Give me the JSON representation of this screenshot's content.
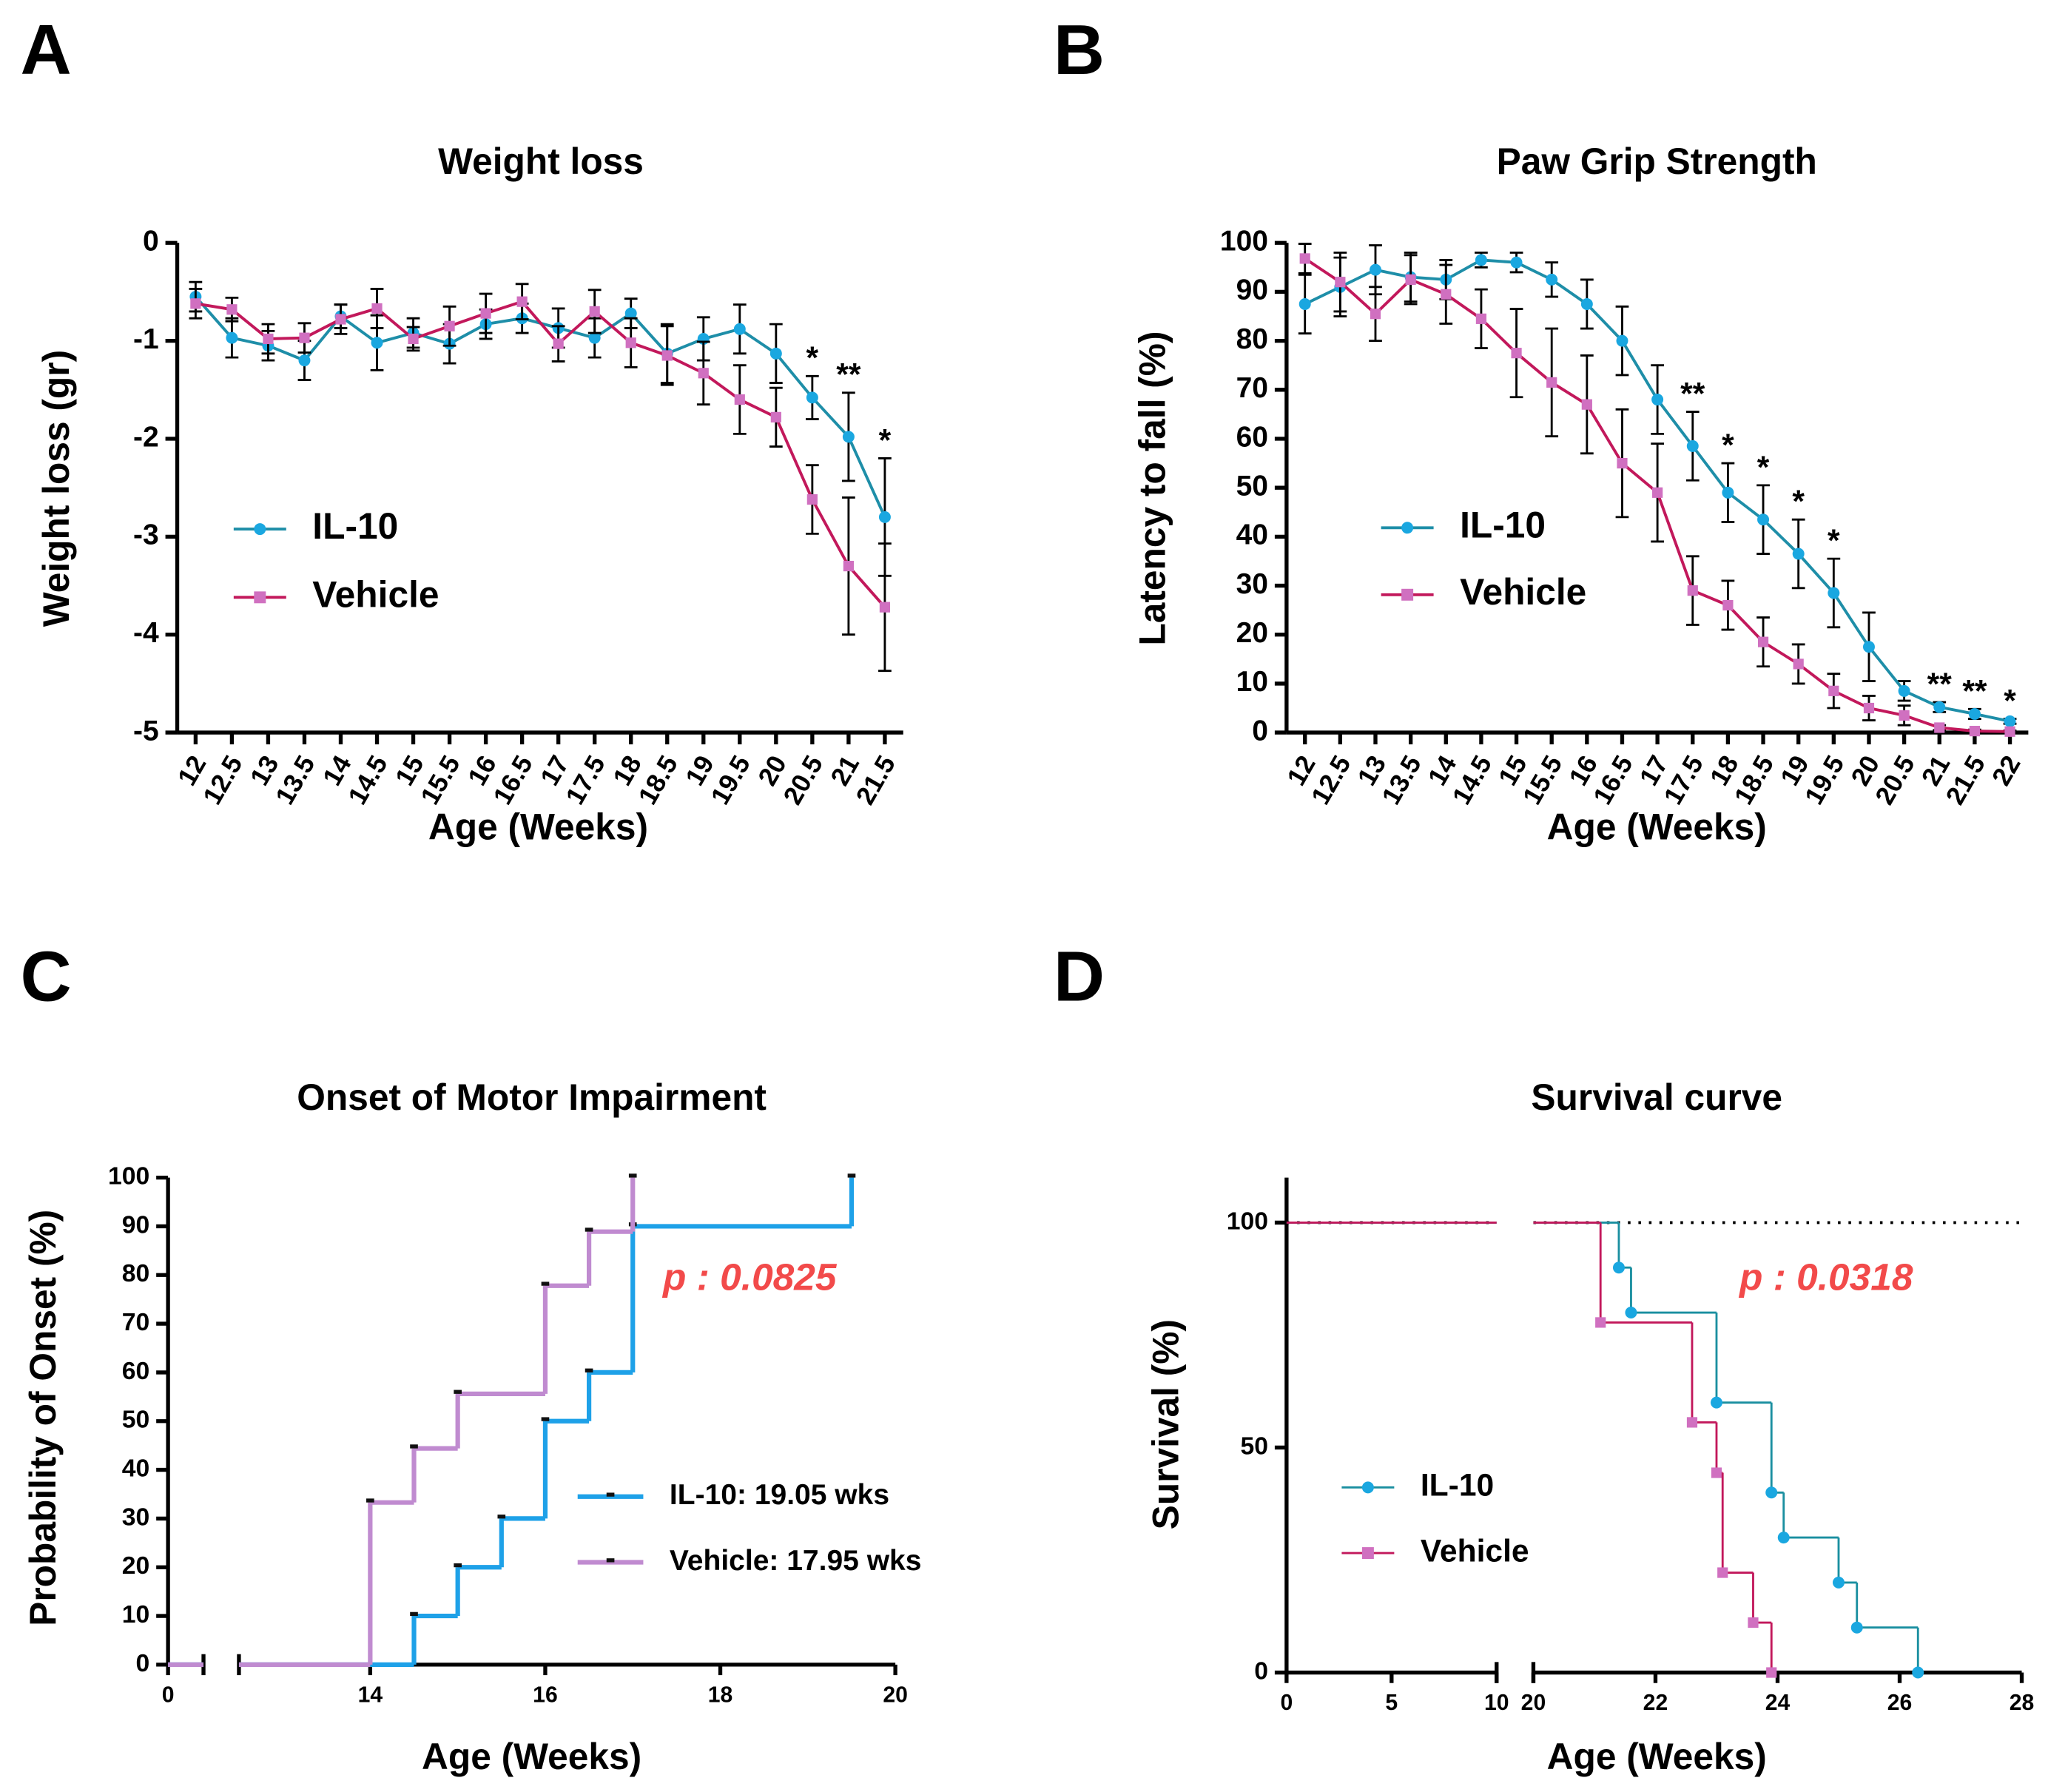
{
  "chart_data": [
    {
      "type": "line",
      "label": "A",
      "title": "Weight loss",
      "xlabel": "Age (Weeks)",
      "ylabel": "Weight loss (gr)",
      "categories": [
        "12",
        "12.5",
        "13",
        "13.5",
        "14",
        "14.5",
        "15",
        "15.5",
        "16",
        "16.5",
        "17",
        "17.5",
        "18",
        "18.5",
        "19",
        "19.5",
        "20",
        "20.5",
        "21",
        "21.5"
      ],
      "ylim": [
        -5,
        0
      ],
      "yticks": [
        0,
        -1,
        -2,
        -3,
        -4,
        -5
      ],
      "series": [
        {
          "name": "IL-10",
          "color": "#1e8ea8",
          "marker_color": "#1aa7e0",
          "marker": "circle",
          "values": [
            -0.55,
            -0.97,
            -1.05,
            -1.2,
            -0.75,
            -1.02,
            -0.92,
            -1.03,
            -0.83,
            -0.77,
            -0.87,
            -0.97,
            -0.72,
            -1.13,
            -0.98,
            -0.88,
            -1.13,
            -1.58,
            -1.98,
            -2.8
          ],
          "errors": [
            0.15,
            0.2,
            0.15,
            0.2,
            0.12,
            0.28,
            0.15,
            0.2,
            0.15,
            0.15,
            0.2,
            0.2,
            0.15,
            0.3,
            0.22,
            0.25,
            0.3,
            0.22,
            0.45,
            0.6
          ]
        },
        {
          "name": "Vehicle",
          "color": "#c2185b",
          "marker_color": "#d070c0",
          "marker": "square",
          "values": [
            -0.62,
            -0.68,
            -0.98,
            -0.97,
            -0.78,
            -0.67,
            -0.98,
            -0.85,
            -0.72,
            -0.6,
            -1.03,
            -0.7,
            -1.02,
            -1.15,
            -1.33,
            -1.6,
            -1.78,
            -2.62,
            -3.3,
            -3.72
          ],
          "errors": [
            0.15,
            0.12,
            0.15,
            0.15,
            0.15,
            0.2,
            0.12,
            0.2,
            0.2,
            0.18,
            0.18,
            0.22,
            0.25,
            0.3,
            0.32,
            0.35,
            0.3,
            0.35,
            0.7,
            0.65
          ]
        }
      ],
      "annotations": [
        {
          "text": "*",
          "x": "20.5"
        },
        {
          "text": "**",
          "x": "21"
        },
        {
          "text": "*",
          "x": "21.5"
        }
      ]
    },
    {
      "type": "line",
      "label": "B",
      "title": "Paw Grip Strength",
      "xlabel": "Age (Weeks)",
      "ylabel": "Latency to fall (%)",
      "categories": [
        "12",
        "12.5",
        "13",
        "13.5",
        "14",
        "14.5",
        "15",
        "15.5",
        "16",
        "16.5",
        "17",
        "17.5",
        "18",
        "18.5",
        "19",
        "19.5",
        "20",
        "20.5",
        "21",
        "21.5",
        "22"
      ],
      "ylim": [
        0,
        100
      ],
      "yticks": [
        0,
        10,
        20,
        30,
        40,
        50,
        60,
        70,
        80,
        90,
        100
      ],
      "series": [
        {
          "name": "IL-10",
          "color": "#1e8ea8",
          "marker_color": "#1aa7e0",
          "marker": "circle",
          "values": [
            87.5,
            91,
            94.5,
            93,
            92.5,
            96.5,
            96,
            92.5,
            87.5,
            80,
            68,
            58.5,
            49,
            43.5,
            36.5,
            28.5,
            17.5,
            8.5,
            5.2,
            3.8,
            2.3
          ],
          "errors": [
            6,
            6,
            5,
            5,
            4,
            1.5,
            2,
            3.5,
            5,
            7,
            7,
            7,
            6,
            7,
            7,
            7,
            7,
            2,
            1,
            1,
            0.5
          ]
        },
        {
          "name": "Vehicle",
          "color": "#c2185b",
          "marker_color": "#d070c0",
          "marker": "square",
          "values": [
            96.8,
            92,
            85.5,
            92.5,
            89.5,
            84.5,
            77.5,
            71.5,
            67,
            55,
            49,
            29,
            26,
            18.5,
            14,
            8.5,
            5,
            3.5,
            1,
            0.3,
            0.2
          ],
          "errors": [
            3,
            6,
            5.5,
            5,
            6,
            6,
            9,
            11,
            10,
            11,
            10,
            7,
            5,
            5,
            4,
            3.5,
            2.5,
            2,
            0.5,
            0.3,
            0.2
          ]
        }
      ],
      "annotations": [
        {
          "text": "**",
          "x": "17.5"
        },
        {
          "text": "*",
          "x": "18"
        },
        {
          "text": "*",
          "x": "18.5"
        },
        {
          "text": "*",
          "x": "19"
        },
        {
          "text": "*",
          "x": "19.5"
        },
        {
          "text": "**",
          "x": "21"
        },
        {
          "text": "**",
          "x": "21.5"
        },
        {
          "text": "*",
          "x": "22"
        }
      ]
    },
    {
      "type": "step",
      "label": "C",
      "title": "Onset of Motor Impairment",
      "xlabel": "Age (Weeks)",
      "ylabel": "Probability of Onset (%)",
      "x_segments": [
        {
          "xlim": [
            0,
            0.4
          ],
          "xticks": [
            0
          ]
        },
        {
          "xlim": [
            12.5,
            20
          ],
          "xticks": [
            14,
            16,
            18,
            20
          ]
        }
      ],
      "ylim": [
        0,
        100
      ],
      "yticks": [
        0,
        10,
        20,
        30,
        40,
        50,
        60,
        70,
        80,
        90,
        100
      ],
      "series": [
        {
          "name": "IL-10: 19.05 wks",
          "color": "#1ea1e8",
          "x": [
            0,
            14.5,
            15,
            15.5,
            16,
            16.5,
            17,
            19.5
          ],
          "values": [
            0,
            10,
            20,
            30,
            50,
            60,
            90,
            100
          ]
        },
        {
          "name": "Vehicle: 17.95 wks",
          "color": "#c08bd0",
          "x": [
            0,
            14,
            14.5,
            15,
            16,
            16.5,
            17
          ],
          "values": [
            0,
            33.3,
            44.4,
            55.6,
            77.8,
            88.9,
            100
          ]
        }
      ],
      "p_value": "p : 0.0825"
    },
    {
      "type": "step",
      "label": "D",
      "title": "Survival curve",
      "xlabel": "Age (Weeks)",
      "ylabel": "Survival (%)",
      "x_segments": [
        {
          "xlim": [
            0,
            10
          ],
          "xticks": [
            0,
            5,
            10
          ]
        },
        {
          "xlim": [
            20,
            28
          ],
          "xticks": [
            20,
            22,
            24,
            26,
            28
          ]
        }
      ],
      "ylim": [
        0,
        110
      ],
      "yticks": [
        0,
        50,
        100
      ],
      "hline": 100,
      "series": [
        {
          "name": "IL-10",
          "color": "#1a8fa0",
          "marker_color": "#1aa7e0",
          "marker": "circle",
          "x": [
            0,
            21.4,
            21.6,
            23,
            23.9,
            24.1,
            25,
            25.3,
            26.3
          ],
          "values": [
            100,
            90,
            80,
            60,
            40,
            30,
            20,
            10,
            0
          ]
        },
        {
          "name": "Vehicle",
          "color": "#c2185b",
          "marker_color": "#d070c0",
          "marker": "square",
          "x": [
            0,
            21.1,
            22.6,
            23,
            23.1,
            23.6,
            23.9
          ],
          "values": [
            100,
            77.8,
            55.6,
            44.4,
            22.2,
            11.1,
            0
          ]
        }
      ],
      "p_value": "p : 0.0318"
    }
  ]
}
